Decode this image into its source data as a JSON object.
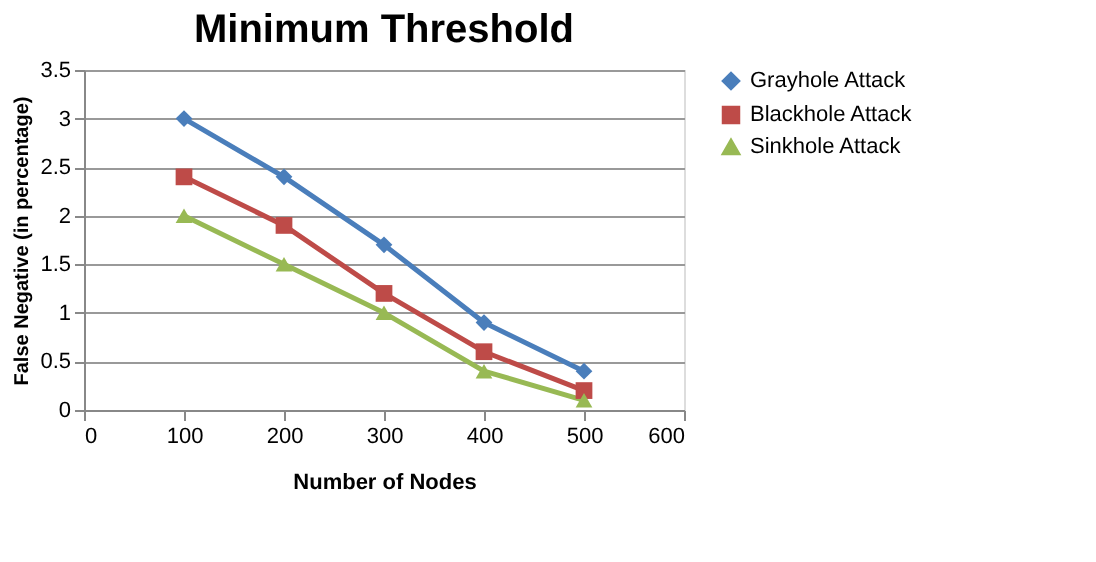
{
  "chart_data": {
    "type": "line",
    "title": "Minimum Threshold",
    "xlabel": "Number of Nodes",
    "ylabel": "False Negative (in percentage)",
    "x": [
      100,
      200,
      300,
      400,
      500
    ],
    "series": [
      {
        "name": "Grayhole Attack",
        "color": "#4a7ebb",
        "marker": "diamond",
        "values": [
          3,
          2.4,
          1.7,
          0.9,
          0.4
        ]
      },
      {
        "name": "Blackhole Attack",
        "color": "#be4b48",
        "marker": "square",
        "values": [
          2.4,
          1.9,
          1.2,
          0.6,
          0.2
        ]
      },
      {
        "name": "Sinkhole Attack",
        "color": "#98b954",
        "marker": "triangle",
        "values": [
          2,
          1.5,
          1,
          0.4,
          0.1
        ]
      }
    ],
    "xlim": [
      0,
      600
    ],
    "xticks": [
      0,
      100,
      200,
      300,
      400,
      500,
      600
    ],
    "ylim": [
      0,
      3.5
    ],
    "yticks": [
      0,
      0.5,
      1,
      1.5,
      2,
      2.5,
      3,
      3.5
    ],
    "grid": "y",
    "legend": "right",
    "line_style": "solid"
  }
}
